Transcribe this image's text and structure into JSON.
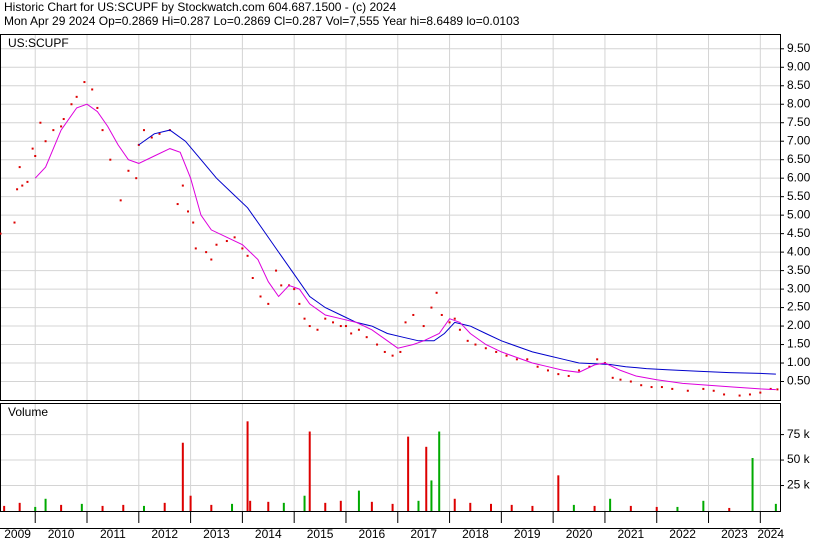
{
  "header": {
    "line1": "Historic Chart for US:SCUPF by Stockwatch.com 604.687.1500 - (c) 2024",
    "line2": "Mon Apr 29 2024   Op=0.2869   Hi=0.287   Lo=0.2869   Cl=0.287   Vol=7,555   Year hi=8.6489   lo=0.0103"
  },
  "chart_data": [
    {
      "type": "scatter",
      "title": "US:SCUPF",
      "xlim": [
        2009.32,
        2024.38
      ],
      "xgrid": [
        2010,
        2011,
        2012,
        2013,
        2014,
        2015,
        2016,
        2017,
        2018,
        2019,
        2020,
        2021,
        2022,
        2023,
        2024
      ],
      "ylim": [
        0,
        9.9
      ],
      "grid": true,
      "yticks": [
        {
          "value": 0.5,
          "label": "0.50"
        },
        {
          "value": 1,
          "label": "1.00"
        },
        {
          "value": 1.5,
          "label": "1.50"
        },
        {
          "value": 2,
          "label": "2.00"
        },
        {
          "value": 2.5,
          "label": "2.50"
        },
        {
          "value": 3,
          "label": "3.00"
        },
        {
          "value": 3.5,
          "label": "3.50"
        },
        {
          "value": 4,
          "label": "4.00"
        },
        {
          "value": 4.5,
          "label": "4.50"
        },
        {
          "value": 5,
          "label": "5.00"
        },
        {
          "value": 5.5,
          "label": "5.50"
        },
        {
          "value": 6,
          "label": "6.00"
        },
        {
          "value": 6.5,
          "label": "6.50"
        },
        {
          "value": 7,
          "label": "7.00"
        },
        {
          "value": 7.5,
          "label": "7.50"
        },
        {
          "value": 8,
          "label": "8.00"
        },
        {
          "value": 8.5,
          "label": "8.50"
        },
        {
          "value": 9,
          "label": "9.00"
        },
        {
          "value": 9.5,
          "label": "9.50"
        }
      ],
      "series": [
        {
          "kind": "points",
          "color": "#dd0000",
          "x": [
            2009.33,
            2009.6,
            2009.65,
            2009.7,
            2009.75,
            2009.85,
            2009.95,
            2010.0,
            2010.1,
            2010.2,
            2010.35,
            2010.5,
            2010.55,
            2010.7,
            2010.8,
            2010.95,
            2011.1,
            2011.2,
            2011.3,
            2011.45,
            2011.65,
            2011.8,
            2011.95,
            2012.0,
            2012.1,
            2012.25,
            2012.4,
            2012.6,
            2012.75,
            2012.85,
            2012.95,
            2013.05,
            2013.1,
            2013.3,
            2013.4,
            2013.5,
            2013.7,
            2013.85,
            2014.0,
            2014.1,
            2014.2,
            2014.35,
            2014.5,
            2014.65,
            2014.75,
            2014.9,
            2015.0,
            2015.1,
            2015.2,
            2015.3,
            2015.45,
            2015.6,
            2015.75,
            2015.9,
            2016.0,
            2016.1,
            2016.25,
            2016.4,
            2016.6,
            2016.75,
            2016.9,
            2017.05,
            2017.15,
            2017.3,
            2017.5,
            2017.65,
            2017.75,
            2017.85,
            2018.0,
            2018.1,
            2018.2,
            2018.35,
            2018.5,
            2018.7,
            2018.9,
            2019.1,
            2019.3,
            2019.5,
            2019.7,
            2019.9,
            2020.1,
            2020.3,
            2020.5,
            2020.7,
            2020.85,
            2021.0,
            2021.15,
            2021.3,
            2021.5,
            2021.7,
            2021.9,
            2022.1,
            2022.3,
            2022.6,
            2022.9,
            2023.1,
            2023.3,
            2023.6,
            2023.8,
            2024.0,
            2024.2,
            2024.33
          ],
          "values": [
            4.5,
            4.8,
            5.7,
            6.3,
            5.8,
            5.9,
            6.8,
            6.6,
            7.5,
            7.0,
            7.3,
            7.4,
            7.6,
            8.0,
            8.2,
            8.6,
            8.4,
            7.9,
            7.3,
            6.5,
            5.4,
            6.2,
            6.0,
            6.9,
            7.3,
            7.1,
            7.2,
            7.3,
            5.3,
            5.8,
            5.1,
            4.8,
            4.1,
            4.0,
            3.8,
            4.2,
            4.3,
            4.4,
            4.1,
            3.9,
            3.3,
            2.8,
            2.6,
            3.5,
            3.1,
            3.1,
            3.0,
            2.6,
            2.2,
            2.0,
            1.9,
            2.2,
            2.1,
            2.0,
            2.0,
            1.8,
            1.9,
            1.7,
            1.5,
            1.3,
            1.2,
            1.3,
            2.1,
            2.3,
            2.0,
            2.5,
            2.9,
            2.3,
            2.1,
            2.2,
            1.9,
            1.6,
            1.5,
            1.4,
            1.3,
            1.2,
            1.1,
            1.1,
            0.9,
            0.8,
            0.7,
            0.65,
            0.8,
            0.9,
            1.1,
            1.0,
            0.6,
            0.55,
            0.5,
            0.4,
            0.35,
            0.35,
            0.3,
            0.25,
            0.3,
            0.25,
            0.15,
            0.12,
            0.15,
            0.2,
            0.3,
            0.287
          ]
        },
        {
          "kind": "line",
          "color": "#0000cc",
          "x": [
            2012.0,
            2012.3,
            2012.6,
            2012.9,
            2013.2,
            2013.5,
            2013.8,
            2014.1,
            2014.4,
            2014.7,
            2015.0,
            2015.3,
            2015.6,
            2015.9,
            2016.2,
            2016.5,
            2016.8,
            2017.1,
            2017.4,
            2017.7,
            2017.9,
            2018.1,
            2018.4,
            2018.7,
            2019.0,
            2019.3,
            2019.6,
            2019.9,
            2020.2,
            2020.5,
            2020.8,
            2021.1,
            2021.4,
            2021.8,
            2022.2,
            2022.8,
            2023.4,
            2024.0,
            2024.3
          ],
          "values": [
            6.9,
            7.2,
            7.3,
            7.0,
            6.5,
            6.0,
            5.6,
            5.2,
            4.6,
            4.0,
            3.4,
            2.8,
            2.5,
            2.3,
            2.1,
            2.0,
            1.8,
            1.7,
            1.6,
            1.6,
            1.8,
            2.1,
            2.0,
            1.8,
            1.6,
            1.45,
            1.3,
            1.2,
            1.1,
            1.0,
            0.98,
            0.96,
            0.9,
            0.85,
            0.82,
            0.78,
            0.74,
            0.72,
            0.7
          ]
        },
        {
          "kind": "line",
          "color": "#dd00dd",
          "x": [
            2010.0,
            2010.2,
            2010.5,
            2010.8,
            2011.0,
            2011.2,
            2011.4,
            2011.6,
            2011.8,
            2012.0,
            2012.3,
            2012.6,
            2012.8,
            2013.0,
            2013.2,
            2013.4,
            2013.7,
            2014.0,
            2014.3,
            2014.5,
            2014.7,
            2014.9,
            2015.1,
            2015.3,
            2015.6,
            2015.9,
            2016.2,
            2016.5,
            2016.8,
            2017.0,
            2017.3,
            2017.5,
            2017.8,
            2018.0,
            2018.2,
            2018.4,
            2018.7,
            2019.0,
            2019.3,
            2019.6,
            2019.9,
            2020.2,
            2020.5,
            2020.8,
            2021.0,
            2021.3,
            2021.6,
            2022.0,
            2022.5,
            2023.0,
            2023.5,
            2024.0,
            2024.3
          ],
          "values": [
            6.0,
            6.3,
            7.3,
            7.9,
            8.0,
            7.8,
            7.4,
            6.9,
            6.5,
            6.4,
            6.6,
            6.8,
            6.7,
            6.0,
            5.0,
            4.6,
            4.4,
            4.2,
            3.8,
            3.2,
            2.8,
            3.1,
            3.0,
            2.6,
            2.3,
            2.2,
            2.1,
            1.9,
            1.6,
            1.4,
            1.5,
            1.6,
            1.8,
            2.2,
            2.1,
            1.8,
            1.5,
            1.3,
            1.15,
            1.0,
            0.9,
            0.8,
            0.75,
            0.95,
            1.0,
            0.8,
            0.65,
            0.55,
            0.45,
            0.4,
            0.35,
            0.3,
            0.28
          ]
        }
      ]
    },
    {
      "type": "bar",
      "title": "Volume",
      "xlim": [
        2009.32,
        2024.38
      ],
      "xgrid": [
        2010,
        2011,
        2012,
        2013,
        2014,
        2015,
        2016,
        2017,
        2018,
        2019,
        2020,
        2021,
        2022,
        2023,
        2024
      ],
      "ylim": [
        0,
        106000
      ],
      "grid": true,
      "yticks": [
        {
          "value": 25000,
          "label": "25 k"
        },
        {
          "value": 50000,
          "label": "50 k"
        },
        {
          "value": 75000,
          "label": "75 k"
        }
      ],
      "xticks": [
        {
          "value": 2009.66,
          "label": "2009"
        },
        {
          "value": 2010.5,
          "label": "2010"
        },
        {
          "value": 2011.5,
          "label": "2011"
        },
        {
          "value": 2012.5,
          "label": "2012"
        },
        {
          "value": 2013.5,
          "label": "2013"
        },
        {
          "value": 2014.5,
          "label": "2014"
        },
        {
          "value": 2015.5,
          "label": "2015"
        },
        {
          "value": 2016.5,
          "label": "2016"
        },
        {
          "value": 2017.5,
          "label": "2017"
        },
        {
          "value": 2018.5,
          "label": "2018"
        },
        {
          "value": 2019.5,
          "label": "2019"
        },
        {
          "value": 2020.5,
          "label": "2020"
        },
        {
          "value": 2021.5,
          "label": "2021"
        },
        {
          "value": 2022.5,
          "label": "2022"
        },
        {
          "value": 2023.5,
          "label": "2023"
        },
        {
          "value": 2024.2,
          "label": "2024"
        }
      ],
      "x": [
        2009.4,
        2009.7,
        2010.0,
        2010.2,
        2010.5,
        2010.9,
        2011.3,
        2011.7,
        2012.1,
        2012.5,
        2012.85,
        2013.0,
        2013.4,
        2013.8,
        2014.1,
        2014.15,
        2014.5,
        2014.8,
        2015.2,
        2015.3,
        2015.6,
        2015.9,
        2016.25,
        2016.5,
        2016.9,
        2017.2,
        2017.4,
        2017.55,
        2017.65,
        2017.8,
        2018.1,
        2018.4,
        2018.8,
        2019.2,
        2019.6,
        2020.1,
        2020.4,
        2020.8,
        2021.1,
        2021.5,
        2022.0,
        2022.4,
        2022.9,
        2023.4,
        2023.85,
        2024.3
      ],
      "values": [
        5000,
        8000,
        4000,
        12000,
        6000,
        7000,
        5000,
        6000,
        5000,
        8000,
        67000,
        15000,
        6000,
        7000,
        88000,
        10000,
        9000,
        8000,
        15000,
        78000,
        8000,
        10000,
        20000,
        9000,
        7000,
        73000,
        10000,
        63000,
        30000,
        78000,
        12000,
        8000,
        7000,
        6000,
        5000,
        35000,
        6000,
        5000,
        12000,
        5000,
        4000,
        4000,
        10000,
        3000,
        52000,
        7000
      ],
      "colors": [
        "#dd0000",
        "#dd0000",
        "#00aa00",
        "#00aa00",
        "#dd0000",
        "#00aa00",
        "#dd0000",
        "#dd0000",
        "#00aa00",
        "#dd0000",
        "#dd0000",
        "#dd0000",
        "#dd0000",
        "#00aa00",
        "#dd0000",
        "#dd0000",
        "#dd0000",
        "#00aa00",
        "#00aa00",
        "#dd0000",
        "#dd0000",
        "#dd0000",
        "#00aa00",
        "#dd0000",
        "#dd0000",
        "#dd0000",
        "#00aa00",
        "#dd0000",
        "#00aa00",
        "#00aa00",
        "#dd0000",
        "#dd0000",
        "#dd0000",
        "#dd0000",
        "#dd0000",
        "#dd0000",
        "#00aa00",
        "#dd0000",
        "#00aa00",
        "#dd0000",
        "#dd0000",
        "#00aa00",
        "#00aa00",
        "#dd0000",
        "#00aa00",
        "#00aa00"
      ]
    }
  ]
}
